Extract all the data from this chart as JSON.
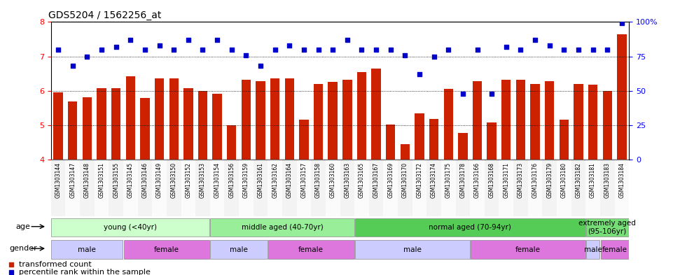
{
  "title": "GDS5204 / 1562256_at",
  "samples": [
    "GSM1303144",
    "GSM1303147",
    "GSM1303148",
    "GSM1303151",
    "GSM1303155",
    "GSM1303145",
    "GSM1303146",
    "GSM1303149",
    "GSM1303150",
    "GSM1303152",
    "GSM1303153",
    "GSM1303154",
    "GSM1303156",
    "GSM1303159",
    "GSM1303161",
    "GSM1303162",
    "GSM1303164",
    "GSM1303157",
    "GSM1303158",
    "GSM1303160",
    "GSM1303163",
    "GSM1303165",
    "GSM1303167",
    "GSM1303169",
    "GSM1303170",
    "GSM1303172",
    "GSM1303174",
    "GSM1303175",
    "GSM1303178",
    "GSM1303166",
    "GSM1303168",
    "GSM1303171",
    "GSM1303173",
    "GSM1303176",
    "GSM1303179",
    "GSM1303180",
    "GSM1303182",
    "GSM1303181",
    "GSM1303183",
    "GSM1303184"
  ],
  "bar_values": [
    5.95,
    5.68,
    5.82,
    6.08,
    6.08,
    6.42,
    5.78,
    6.35,
    6.35,
    6.08,
    6.0,
    5.92,
    5.0,
    6.32,
    6.28,
    6.35,
    6.35,
    5.15,
    6.2,
    6.25,
    6.32,
    6.55,
    6.65,
    5.02,
    4.45,
    5.35,
    5.18,
    6.05,
    4.78,
    6.28,
    5.08,
    6.32,
    6.32,
    6.2,
    6.28,
    5.15,
    6.2,
    6.18,
    6.0,
    7.65
  ],
  "dot_pct": [
    80,
    68,
    75,
    80,
    82,
    87,
    80,
    83,
    80,
    87,
    80,
    87,
    80,
    76,
    68,
    80,
    83,
    80,
    80,
    80,
    87,
    80,
    80,
    80,
    76,
    62,
    75,
    80,
    48,
    80,
    48,
    82,
    80,
    87,
    83,
    80,
    80,
    80,
    80,
    99
  ],
  "ylim_left": [
    4,
    8
  ],
  "ylim_right": [
    0,
    100
  ],
  "bar_color": "#cc2200",
  "dot_color": "#0000cc",
  "age_groups": [
    {
      "label": "young (<40yr)",
      "start": 0,
      "end": 11,
      "color": "#ccffcc"
    },
    {
      "label": "middle aged (40-70yr)",
      "start": 11,
      "end": 21,
      "color": "#99ee99"
    },
    {
      "label": "normal aged (70-94yr)",
      "start": 21,
      "end": 37,
      "color": "#55cc55"
    },
    {
      "label": "extremely aged\n(95-106yr)",
      "start": 37,
      "end": 40,
      "color": "#77dd77"
    }
  ],
  "gender_groups": [
    {
      "label": "male",
      "start": 0,
      "end": 5,
      "color": "#ccccff"
    },
    {
      "label": "female",
      "start": 5,
      "end": 11,
      "color": "#dd77dd"
    },
    {
      "label": "male",
      "start": 11,
      "end": 15,
      "color": "#ccccff"
    },
    {
      "label": "female",
      "start": 15,
      "end": 21,
      "color": "#dd77dd"
    },
    {
      "label": "male",
      "start": 21,
      "end": 29,
      "color": "#ccccff"
    },
    {
      "label": "female",
      "start": 29,
      "end": 37,
      "color": "#dd77dd"
    },
    {
      "label": "male",
      "start": 37,
      "end": 38,
      "color": "#ccccff"
    },
    {
      "label": "female",
      "start": 38,
      "end": 40,
      "color": "#dd77dd"
    }
  ]
}
